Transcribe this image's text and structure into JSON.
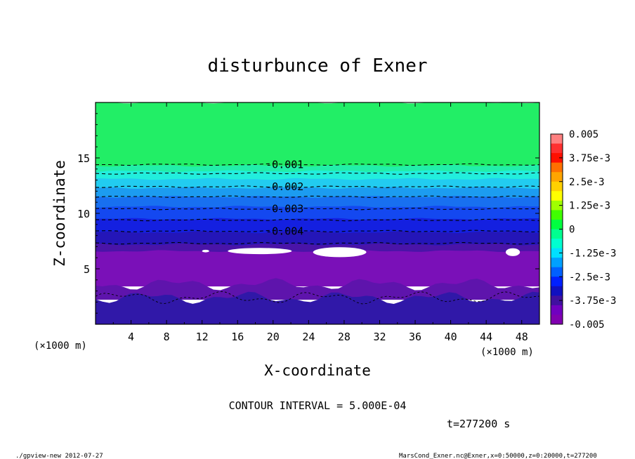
{
  "chart_data": {
    "type": "contour",
    "title": "disturbunce of Exner",
    "xlabel": "X-coordinate",
    "ylabel": "Z-coordinate",
    "x_unit": "(×1000 m)",
    "y_unit": "(×1000 m)",
    "xlim": [
      0,
      50
    ],
    "ylim": [
      0,
      20
    ],
    "x_ticks": [
      "4",
      "8",
      "12",
      "16",
      "20",
      "24",
      "28",
      "32",
      "36",
      "40",
      "44",
      "48"
    ],
    "y_ticks": [
      "5",
      "10",
      "15"
    ],
    "contour_labels": [
      {
        "text": "-0.001",
        "x": 19,
        "z": 14.4
      },
      {
        "text": "-0.002",
        "x": 19,
        "z": 12.4
      },
      {
        "text": "-0.003",
        "x": 19,
        "z": 10.4
      },
      {
        "text": "-0.004",
        "x": 19,
        "z": 8.4
      }
    ],
    "colorbar": {
      "labels": [
        "0.005",
        "3.75e-3",
        "2.5e-3",
        "1.25e-3",
        "0",
        "-1.25e-3",
        "-2.5e-3",
        "-3.75e-3",
        "-0.005"
      ],
      "range": [
        -0.005,
        0.005
      ],
      "colors": [
        "#ff8080",
        "#ff3030",
        "#ff1000",
        "#ff7000",
        "#ffa500",
        "#ffd000",
        "#ffff00",
        "#a0ff00",
        "#40ff00",
        "#00ff40",
        "#00ff90",
        "#00ffd0",
        "#00e0ff",
        "#00a0ff",
        "#0060ff",
        "#0020ff",
        "#1010c0",
        "#4010a0",
        "#7000c0",
        "#8000b0"
      ]
    },
    "bands": [
      {
        "z_top": 20.0,
        "z_bot": 14.3,
        "color": "#22ee66"
      },
      {
        "z_top": 14.3,
        "z_bot": 13.8,
        "color": "#22eeaa"
      },
      {
        "z_top": 13.8,
        "z_bot": 13.1,
        "color": "#22eedd"
      },
      {
        "z_top": 13.1,
        "z_bot": 12.3,
        "color": "#22ccf0"
      },
      {
        "z_top": 12.3,
        "z_bot": 11.5,
        "color": "#1c9cf0"
      },
      {
        "z_top": 11.5,
        "z_bot": 10.6,
        "color": "#1870f0"
      },
      {
        "z_top": 10.6,
        "z_bot": 9.5,
        "color": "#1448f0"
      },
      {
        "z_top": 9.5,
        "z_bot": 8.3,
        "color": "#1420e0"
      },
      {
        "z_top": 8.3,
        "z_bot": 7.2,
        "color": "#2416b8"
      },
      {
        "z_top": 7.2,
        "z_bot": 6.6,
        "color": "#4a14a8"
      },
      {
        "z_top": 6.6,
        "z_bot": 3.6,
        "color": "#7a10b8"
      },
      {
        "z_top": 3.6,
        "z_bot": 2.4,
        "color": "#5e14ac"
      },
      {
        "z_top": 2.4,
        "z_bot": 0.0,
        "color": "#3018a8"
      }
    ],
    "dashed_contours_z": [
      14.4,
      13.6,
      12.4,
      11.5,
      10.4,
      9.4,
      8.4,
      7.3
    ],
    "contour_interval_label": "CONTOUR INTERVAL = 5.000E-04",
    "time_label": "t=277200 s"
  },
  "footer": {
    "left": "./gpview-new  2012-07-27",
    "right": "MarsCond_Exner.nc@Exner,x=0:50000,z=0:20000,t=277200"
  }
}
